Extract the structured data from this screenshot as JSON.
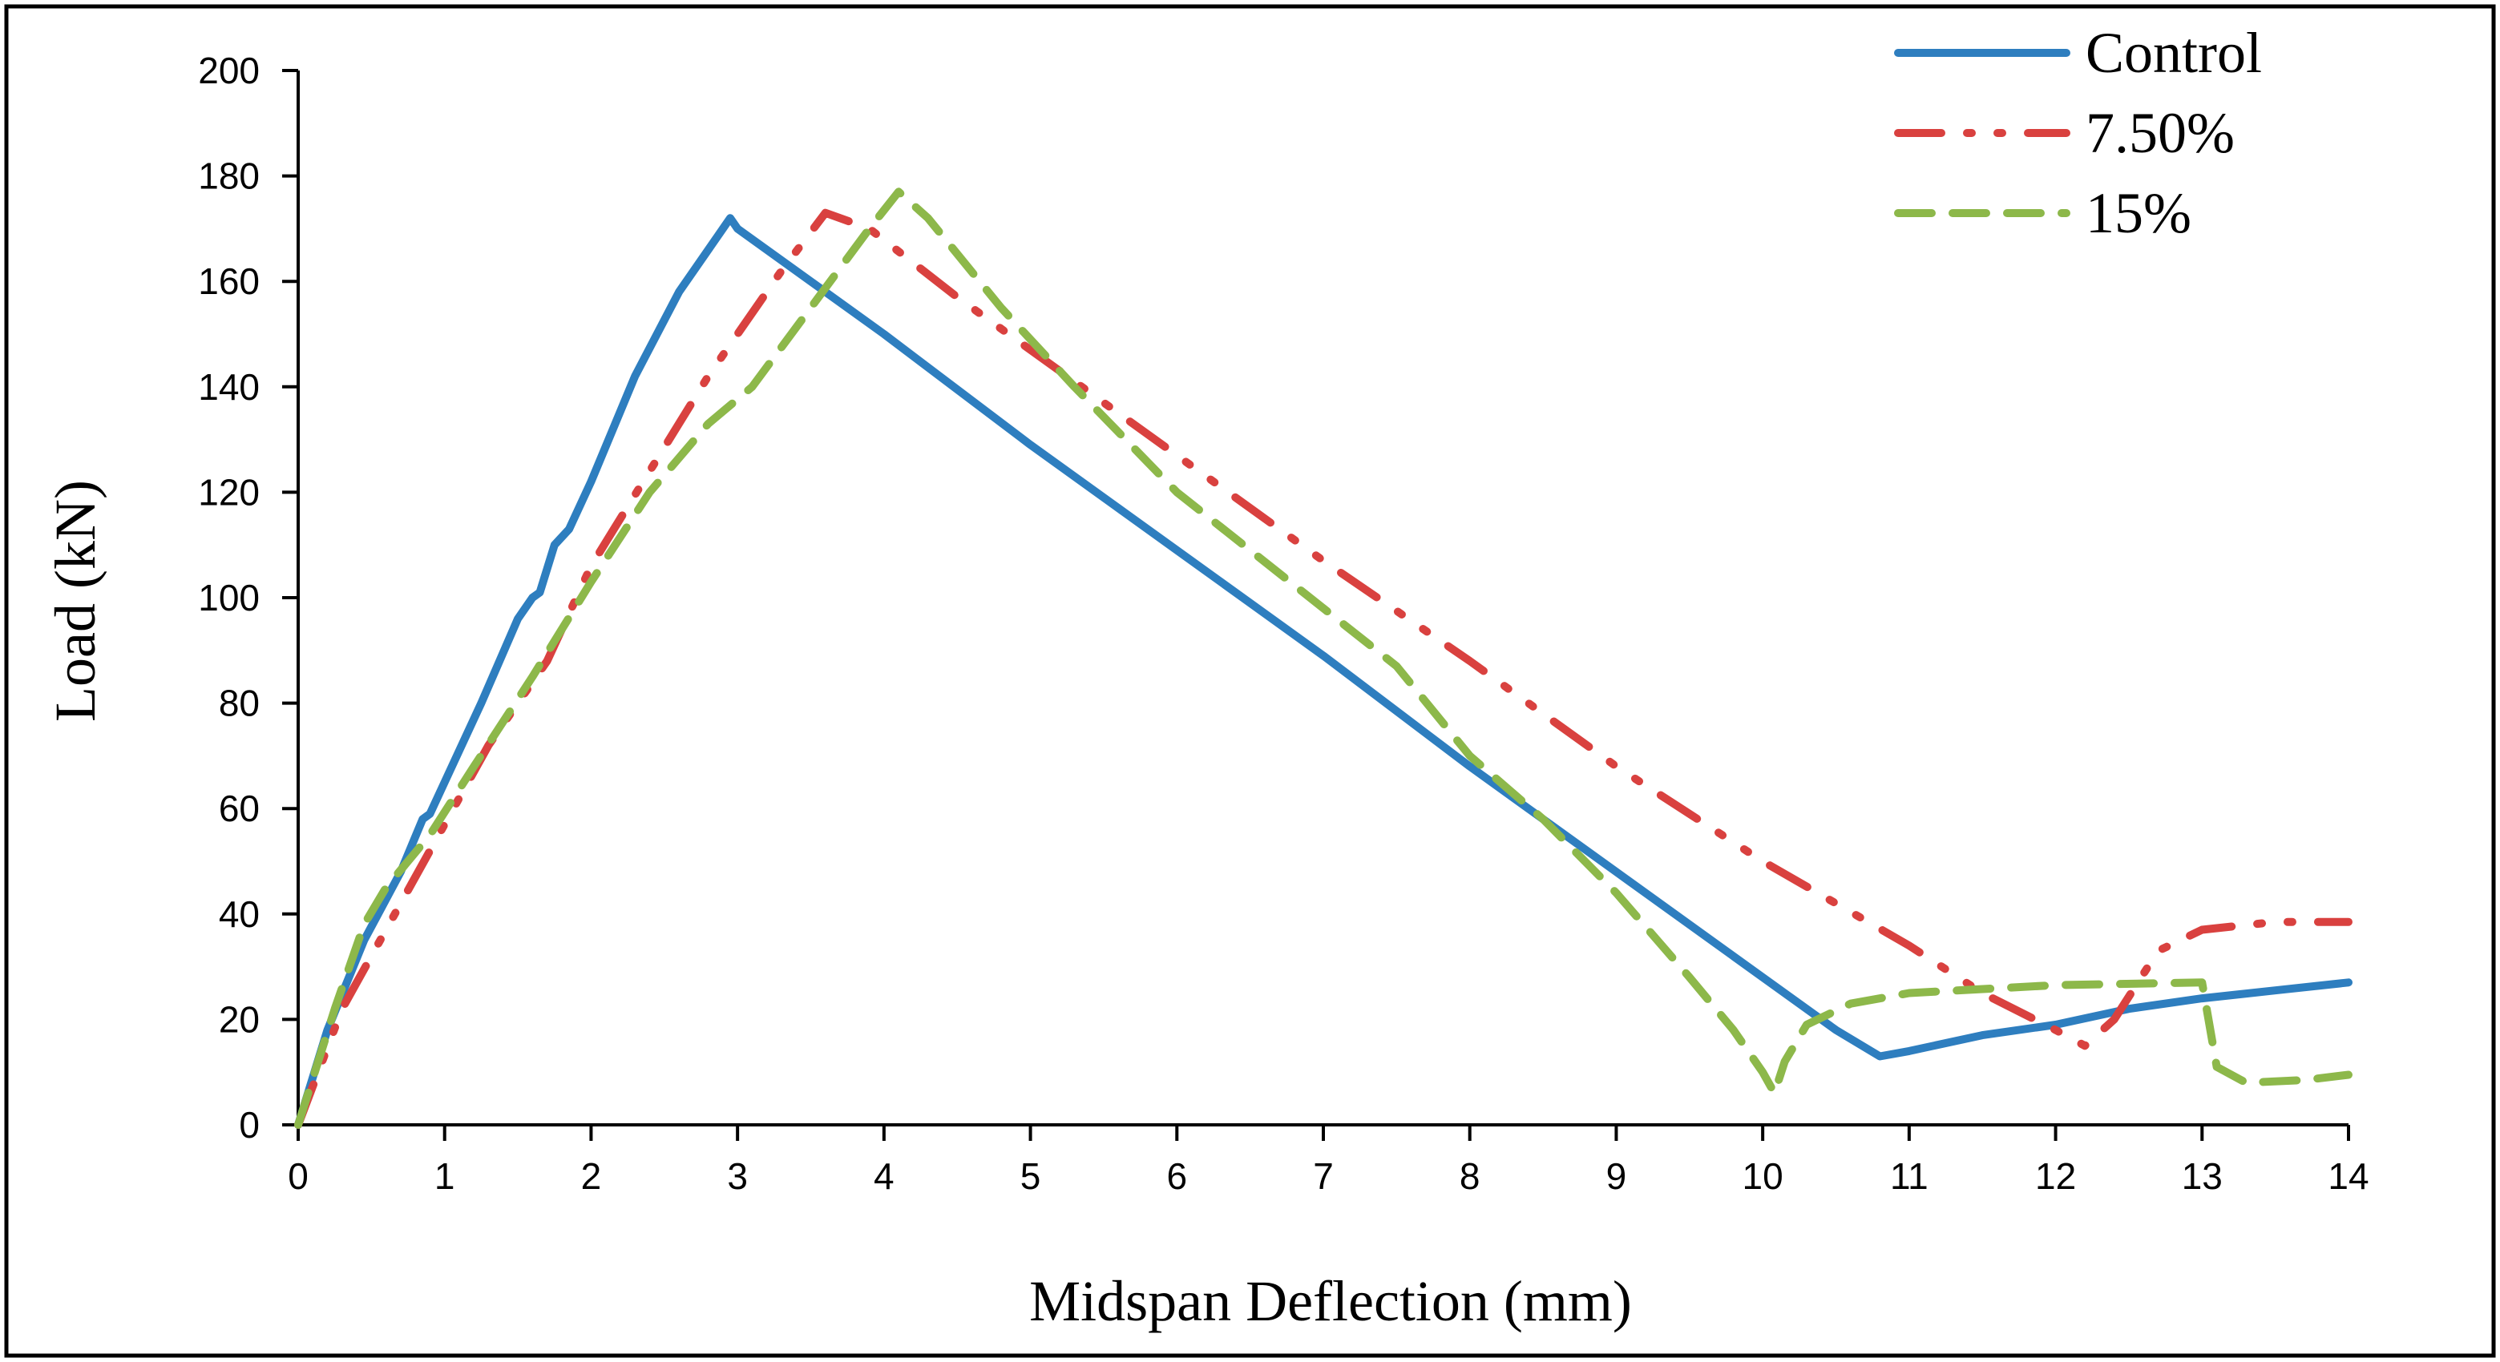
{
  "chart_data": {
    "type": "line",
    "xlabel": "Midspan Deflection (mm)",
    "ylabel": "Load (kN)",
    "xlim": [
      0,
      14
    ],
    "ylim": [
      0,
      200
    ],
    "x_ticks": [
      0,
      1,
      2,
      3,
      4,
      5,
      6,
      7,
      8,
      9,
      10,
      11,
      12,
      13,
      14
    ],
    "y_ticks": [
      0,
      20,
      40,
      60,
      80,
      100,
      120,
      140,
      160,
      180,
      200
    ],
    "grid": false,
    "legend_position": "top-right",
    "series": [
      {
        "name": "Control",
        "color": "#2e7ebf",
        "line_style": "solid",
        "points": [
          [
            0,
            0
          ],
          [
            0.2,
            18
          ],
          [
            0.45,
            35
          ],
          [
            0.7,
            48
          ],
          [
            0.85,
            58
          ],
          [
            0.9,
            59
          ],
          [
            1.0,
            65
          ],
          [
            1.25,
            80
          ],
          [
            1.5,
            96
          ],
          [
            1.6,
            100
          ],
          [
            1.65,
            101
          ],
          [
            1.75,
            110
          ],
          [
            1.85,
            113
          ],
          [
            2.0,
            122
          ],
          [
            2.3,
            142
          ],
          [
            2.6,
            158
          ],
          [
            2.9,
            170
          ],
          [
            2.95,
            172
          ],
          [
            3.0,
            170
          ],
          [
            4.0,
            150
          ],
          [
            5.0,
            129
          ],
          [
            6.0,
            109
          ],
          [
            7.0,
            89
          ],
          [
            8.0,
            68
          ],
          [
            9.0,
            48
          ],
          [
            10.0,
            28
          ],
          [
            10.5,
            18
          ],
          [
            10.8,
            13
          ],
          [
            11.0,
            14
          ],
          [
            11.5,
            17
          ],
          [
            12.0,
            19
          ],
          [
            12.5,
            22
          ],
          [
            13.0,
            24
          ],
          [
            13.5,
            25.5
          ],
          [
            14.0,
            27
          ]
        ]
      },
      {
        "name": "7.50%",
        "color": "#d9413f",
        "line_style": "dash-dot-dot",
        "points": [
          [
            0,
            0
          ],
          [
            0.3,
            22
          ],
          [
            0.6,
            37
          ],
          [
            1.0,
            57
          ],
          [
            1.3,
            72
          ],
          [
            1.7,
            88
          ],
          [
            2.0,
            106
          ],
          [
            2.4,
            124
          ],
          [
            2.8,
            142
          ],
          [
            3.3,
            162
          ],
          [
            3.6,
            173
          ],
          [
            3.9,
            170
          ],
          [
            4.5,
            157
          ],
          [
            5.0,
            147
          ],
          [
            6.0,
            127
          ],
          [
            7.0,
            107
          ],
          [
            8.0,
            88
          ],
          [
            9.0,
            68
          ],
          [
            10.0,
            50
          ],
          [
            11.0,
            34
          ],
          [
            11.5,
            25
          ],
          [
            12.0,
            18
          ],
          [
            12.2,
            15
          ],
          [
            12.4,
            20
          ],
          [
            12.7,
            33
          ],
          [
            13.0,
            37
          ],
          [
            13.5,
            38.5
          ],
          [
            14.0,
            38.5
          ]
        ]
      },
      {
        "name": "15%",
        "color": "#8db84a",
        "line_style": "dashed",
        "points": [
          [
            0,
            0
          ],
          [
            0.25,
            22
          ],
          [
            0.45,
            38
          ],
          [
            0.6,
            45
          ],
          [
            0.9,
            55
          ],
          [
            1.2,
            68
          ],
          [
            1.6,
            85
          ],
          [
            2.0,
            103
          ],
          [
            2.4,
            120
          ],
          [
            2.8,
            133
          ],
          [
            3.1,
            140
          ],
          [
            3.5,
            155
          ],
          [
            3.9,
            170
          ],
          [
            4.1,
            177
          ],
          [
            4.3,
            172
          ],
          [
            4.8,
            155
          ],
          [
            5.3,
            140
          ],
          [
            6.0,
            120
          ],
          [
            7.0,
            98
          ],
          [
            7.5,
            87
          ],
          [
            8.0,
            70
          ],
          [
            8.5,
            58
          ],
          [
            9.0,
            44
          ],
          [
            9.5,
            28
          ],
          [
            9.8,
            18
          ],
          [
            10.0,
            10
          ],
          [
            10.08,
            6
          ],
          [
            10.15,
            12
          ],
          [
            10.3,
            19
          ],
          [
            10.6,
            23
          ],
          [
            11.0,
            25
          ],
          [
            12.0,
            26.5
          ],
          [
            13.0,
            27
          ],
          [
            13.1,
            11
          ],
          [
            13.3,
            8
          ],
          [
            13.7,
            8.5
          ],
          [
            14.0,
            9.5
          ]
        ]
      }
    ]
  }
}
